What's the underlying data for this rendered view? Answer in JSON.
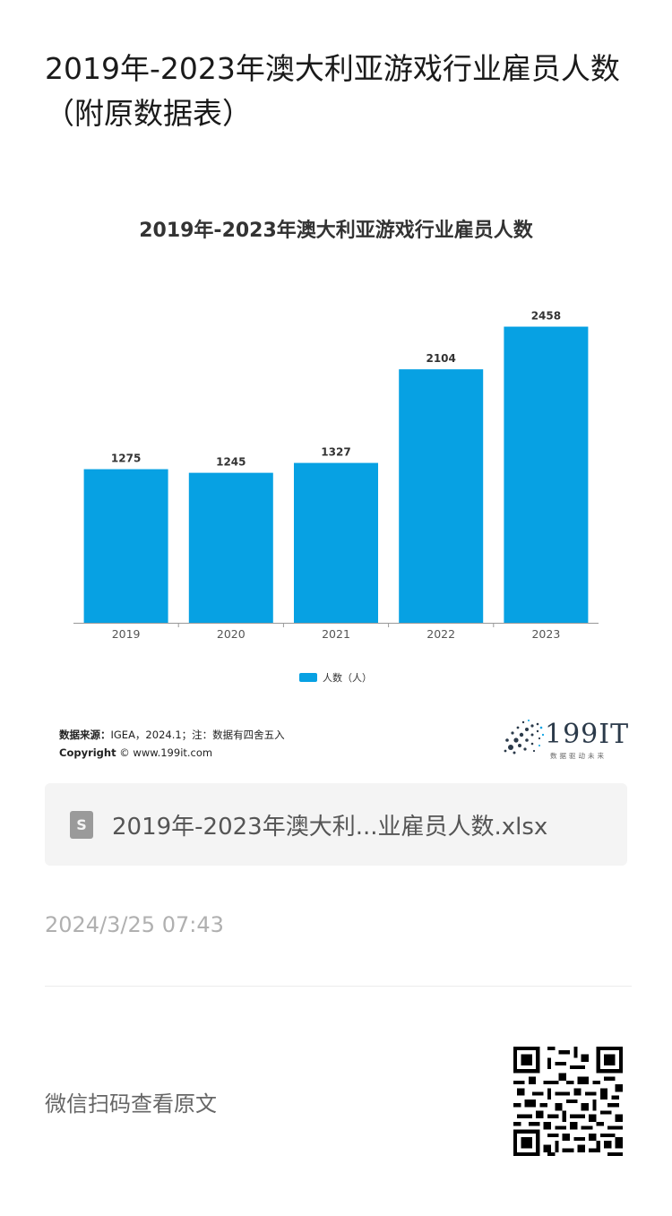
{
  "header": {
    "title": "2019年-2023年澳大利亚游戏行业雇员人数（附原数据表）"
  },
  "chart": {
    "footer": {
      "source_label": "数据来源：",
      "source_text": "IGEA，2024.1；注：数据有四舍五入",
      "copyright_label": "Copyright",
      "copyright_text": "© www.199it.com"
    },
    "logo": {
      "text": "199IT",
      "subtitle": "数据驱动未来"
    }
  },
  "chart_data": {
    "type": "bar",
    "title": "2019年-2023年澳大利亚游戏行业雇员人数",
    "categories": [
      "2019",
      "2020",
      "2021",
      "2022",
      "2023"
    ],
    "series": [
      {
        "name": "人数（人）",
        "values": [
          1275,
          1245,
          1327,
          2104,
          2458
        ]
      }
    ],
    "ylim": [
      0,
      2700
    ],
    "grid": false,
    "legend": "bottom-center",
    "colors": {
      "bar": "#07A1E3",
      "axis": "#999999",
      "label": "#333333"
    }
  },
  "attachment": {
    "file_name": "2019年-2023年澳大利...业雇员人数.xlsx",
    "icon": "spreadsheet-file-icon"
  },
  "meta": {
    "timestamp": "2024/3/25 07:43"
  },
  "footer": {
    "qr_caption": "微信扫码查看原文",
    "qr_icon": "qr-code-icon"
  }
}
